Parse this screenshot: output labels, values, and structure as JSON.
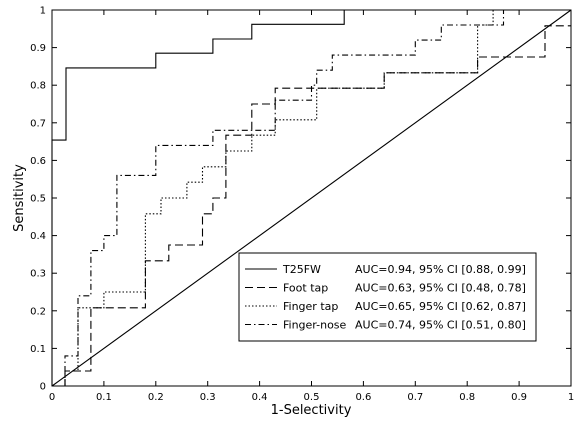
{
  "chart_data": {
    "type": "line",
    "title": "",
    "xlabel": "1-Selectivity",
    "ylabel": "Sensitivity",
    "xlim": [
      0,
      1
    ],
    "ylim": [
      0,
      1
    ],
    "xticks": [
      "0",
      "0.1",
      "0.2",
      "0.3",
      "0.4",
      "0.5",
      "0.6",
      "0.7",
      "0.8",
      "0.9",
      "1"
    ],
    "yticks": [
      "0",
      "0.1",
      "0.2",
      "0.3",
      "0.4",
      "0.5",
      "0.6",
      "0.7",
      "0.8",
      "0.9",
      "1"
    ],
    "grid": false,
    "legend_position": "bottom-right",
    "series": [
      {
        "name": "T25FW",
        "auc": "AUC=0.94, 95% CI [0.88, 0.99]",
        "line_style": "solid",
        "color": "#000000",
        "x": [
          0,
          0,
          0.027,
          0.027,
          0.2,
          0.2,
          0.31,
          0.31,
          0.385,
          0.385,
          0.563,
          0.563,
          1
        ],
        "y": [
          0,
          0.654,
          0.654,
          0.846,
          0.846,
          0.885,
          0.885,
          0.923,
          0.923,
          0.962,
          0.962,
          1,
          1
        ]
      },
      {
        "name": "Foot tap",
        "auc": "AUC=0.63, 95% CI [0.48, 0.78]",
        "line_style": "dashed",
        "color": "#000000",
        "x": [
          0,
          0.025,
          0.025,
          0.075,
          0.075,
          0.18,
          0.18,
          0.225,
          0.225,
          0.25,
          0.25,
          0.29,
          0.29,
          0.31,
          0.31,
          0.335,
          0.335,
          0.385,
          0.385,
          0.43,
          0.43,
          0.64,
          0.64,
          0.82,
          0.82,
          0.95,
          0.95,
          1
        ],
        "y": [
          0,
          0,
          0.04,
          0.04,
          0.208,
          0.208,
          0.333,
          0.333,
          0.375,
          0.375,
          0.375,
          0.375,
          0.458,
          0.458,
          0.5,
          0.5,
          0.667,
          0.667,
          0.75,
          0.75,
          0.792,
          0.792,
          0.833,
          0.833,
          0.875,
          0.875,
          0.958,
          0.958
        ]
      },
      {
        "name": "Finger tap",
        "auc": "AUC=0.65, 95% CI [0.62, 0.87]",
        "line_style": "dotted",
        "color": "#000000",
        "x": [
          0,
          0.025,
          0.025,
          0.05,
          0.05,
          0.1,
          0.1,
          0.18,
          0.18,
          0.21,
          0.21,
          0.26,
          0.26,
          0.29,
          0.29,
          0.335,
          0.335,
          0.385,
          0.385,
          0.43,
          0.43,
          0.51,
          0.51,
          0.64,
          0.64,
          0.82,
          0.82,
          0.85,
          0.85,
          1
        ],
        "y": [
          0,
          0,
          0.04,
          0.04,
          0.208,
          0.208,
          0.25,
          0.25,
          0.458,
          0.458,
          0.5,
          0.5,
          0.542,
          0.542,
          0.583,
          0.583,
          0.625,
          0.625,
          0.667,
          0.667,
          0.708,
          0.708,
          0.792,
          0.792,
          0.833,
          0.833,
          0.96,
          0.96,
          1,
          1
        ]
      },
      {
        "name": "Finger-nose",
        "auc": "AUC=0.74, 95% CI [0.51, 0.80]",
        "line_style": "dash-dot",
        "color": "#000000",
        "x": [
          0,
          0.025,
          0.025,
          0.05,
          0.05,
          0.075,
          0.075,
          0.1,
          0.1,
          0.125,
          0.125,
          0.2,
          0.2,
          0.31,
          0.31,
          0.43,
          0.43,
          0.5,
          0.5,
          0.51,
          0.51,
          0.54,
          0.54,
          0.64,
          0.64,
          0.7,
          0.7,
          0.75,
          0.75,
          0.82,
          0.82,
          0.85,
          0.85,
          0.87,
          0.87,
          1
        ],
        "y": [
          0,
          0,
          0.08,
          0.08,
          0.24,
          0.24,
          0.36,
          0.36,
          0.4,
          0.4,
          0.56,
          0.56,
          0.64,
          0.64,
          0.68,
          0.68,
          0.76,
          0.76,
          0.8,
          0.8,
          0.84,
          0.84,
          0.88,
          0.88,
          0.88,
          0.88,
          0.92,
          0.92,
          0.96,
          0.96,
          0.96,
          0.96,
          0.96,
          0.96,
          1,
          1
        ]
      }
    ],
    "reference_line": {
      "x": [
        0,
        1
      ],
      "y": [
        0,
        1
      ]
    }
  }
}
